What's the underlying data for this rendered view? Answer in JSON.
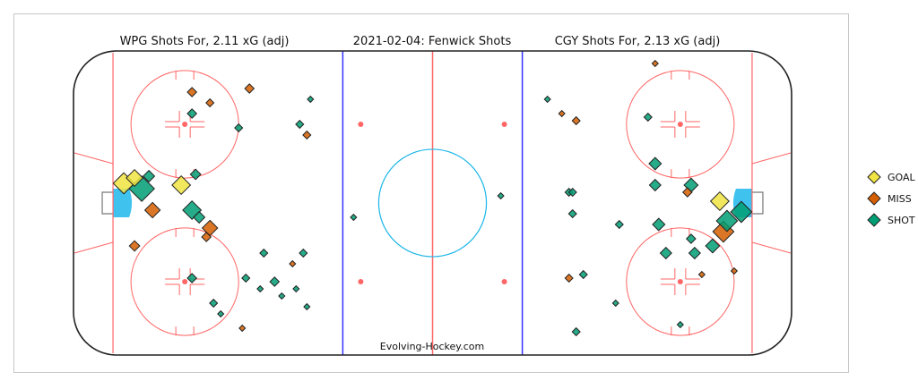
{
  "chart_data": {
    "type": "scatter",
    "title": "2021-02-04:  Fenwick Shots",
    "left_title": "WPG Shots For, 2.11 xG (adj)",
    "right_title": "CGY Shots For, 2.13 xG (adj)",
    "credit": "Evolving-Hockey.com",
    "xlim": [
      -100,
      100
    ],
    "ylim": [
      -42.5,
      42.5
    ],
    "grid": false,
    "legend_position": "right",
    "legend": [
      {
        "label": "GOAL",
        "color": "#f0e442"
      },
      {
        "label": "MISS",
        "color": "#d55e00"
      },
      {
        "label": "SHOT",
        "color": "#009e73"
      }
    ],
    "series": [
      {
        "name": "WPG",
        "points": [
          [
            -67,
            31,
            "MISS",
            0.03
          ],
          [
            -51,
            32,
            "MISS",
            0.03
          ],
          [
            -62,
            28,
            "MISS",
            0.02
          ],
          [
            -34,
            29,
            "SHOT",
            0.01
          ],
          [
            -67,
            25,
            "SHOT",
            0.03
          ],
          [
            -54,
            21,
            "SHOT",
            0.02
          ],
          [
            -37,
            22,
            "SHOT",
            0.02
          ],
          [
            -35,
            19,
            "MISS",
            0.02
          ],
          [
            -66,
            8,
            "SHOT",
            0.04
          ],
          [
            -86,
            5.5,
            "GOAL",
            0.2
          ],
          [
            -83,
            7,
            "GOAL",
            0.12
          ],
          [
            -79,
            7.5,
            "SHOT",
            0.05
          ],
          [
            -81,
            4,
            "SHOT",
            0.3
          ],
          [
            -70,
            5,
            "GOAL",
            0.15
          ],
          [
            -78,
            -2,
            "MISS",
            0.1
          ],
          [
            -67,
            -2,
            "SHOT",
            0.15
          ],
          [
            -65,
            -4,
            "SHOT",
            0.05
          ],
          [
            -62,
            -7,
            "MISS",
            0.1
          ],
          [
            -63,
            -9.5,
            "MISS",
            0.03
          ],
          [
            -83,
            -12,
            "MISS",
            0.04
          ],
          [
            -22,
            -4,
            "SHOT",
            0.01
          ],
          [
            -47,
            -14,
            "SHOT",
            0.02
          ],
          [
            -36,
            -14,
            "SHOT",
            0.02
          ],
          [
            -39,
            -17,
            "MISS",
            0.01
          ],
          [
            -67,
            -21,
            "SHOT",
            0.03
          ],
          [
            -52,
            -21,
            "SHOT",
            0.02
          ],
          [
            -44,
            -22,
            "SHOT",
            0.03
          ],
          [
            -48,
            -24,
            "SHOT",
            0.01
          ],
          [
            -38,
            -24,
            "SHOT",
            0.01
          ],
          [
            -42,
            -26,
            "SHOT",
            0.01
          ],
          [
            -61,
            -28,
            "SHOT",
            0.02
          ],
          [
            -35,
            -29,
            "SHOT",
            0.01
          ],
          [
            -59,
            -31,
            "SHOT",
            0.01
          ],
          [
            -53,
            -35,
            "MISS",
            0.01
          ]
        ]
      },
      {
        "name": "CGY",
        "points": [
          [
            62,
            39,
            "MISS",
            0.01
          ],
          [
            32,
            29,
            "SHOT",
            0.01
          ],
          [
            36,
            25,
            "MISS",
            0.01
          ],
          [
            40,
            23,
            "MISS",
            0.02
          ],
          [
            60,
            24,
            "SHOT",
            0.02
          ],
          [
            62,
            11,
            "SHOT",
            0.06
          ],
          [
            62,
            5,
            "SHOT",
            0.05
          ],
          [
            71,
            3,
            "MISS",
            0.03
          ],
          [
            72,
            5,
            "SHOT",
            0.08
          ],
          [
            38,
            3,
            "SHOT",
            0.02
          ],
          [
            39,
            3,
            "SHOT",
            0.02
          ],
          [
            80,
            0.5,
            "GOAL",
            0.15
          ],
          [
            81,
            -8,
            "MISS",
            0.2
          ],
          [
            86,
            -2.5,
            "SHOT",
            0.2
          ],
          [
            82,
            -5,
            "SHOT",
            0.2
          ],
          [
            39,
            -3,
            "SHOT",
            0.02
          ],
          [
            52,
            -6,
            "SHOT",
            0.02
          ],
          [
            63,
            -6,
            "SHOT",
            0.06
          ],
          [
            72,
            -10,
            "SHOT",
            0.03
          ],
          [
            78,
            -12,
            "SHOT",
            0.08
          ],
          [
            65,
            -14,
            "SHOT",
            0.05
          ],
          [
            73,
            -14,
            "SHOT",
            0.05
          ],
          [
            42,
            -20,
            "SHOT",
            0.02
          ],
          [
            38,
            -21,
            "MISS",
            0.02
          ],
          [
            75,
            -20,
            "MISS",
            0.01
          ],
          [
            84,
            -19,
            "MISS",
            0.01
          ],
          [
            51,
            -28,
            "SHOT",
            0.01
          ],
          [
            69,
            -34,
            "SHOT",
            0.01
          ],
          [
            40,
            -36,
            "SHOT",
            0.02
          ],
          [
            19,
            2,
            "SHOT",
            0.01
          ]
        ]
      }
    ]
  }
}
